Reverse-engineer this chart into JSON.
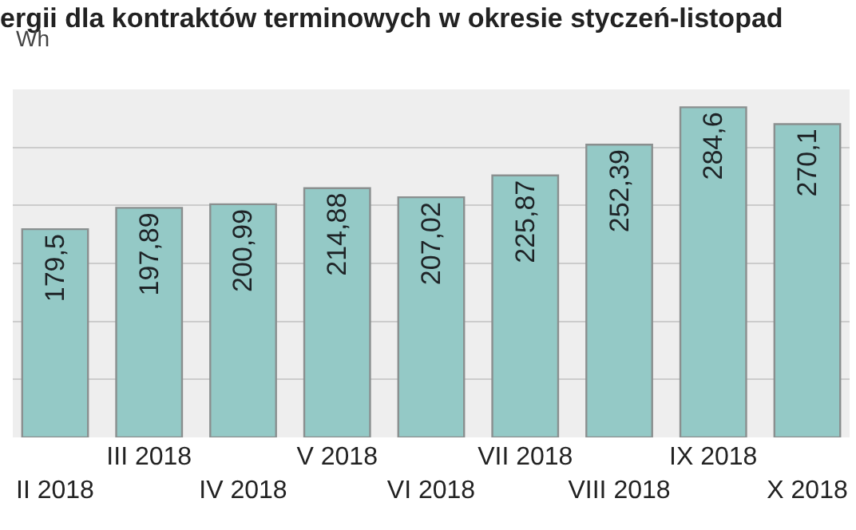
{
  "chart_data": {
    "type": "bar",
    "title": "ergii dla kontraktów terminowych w okresie styczeń-listopad",
    "subtitle": "Wh",
    "categories": [
      "II 2018",
      "III 2018",
      "IV 2018",
      "V 2018",
      "VI 2018",
      "VII 2018",
      "VIII 2018",
      "IX 2018",
      "X 2018"
    ],
    "values": [
      179.5,
      197.89,
      200.99,
      214.88,
      207.02,
      225.87,
      252.39,
      284.6,
      270.1
    ],
    "value_labels": [
      "179,5",
      "197,89",
      "200,99",
      "214,88",
      "207,02",
      "225,87",
      "252,39",
      "284,6",
      "270,1"
    ],
    "color": "#94c9c6",
    "ylim": [
      0,
      300
    ],
    "yticks": [
      {
        "value": 50,
        "label": null
      },
      {
        "value": 100,
        "label": null
      },
      {
        "value": 150,
        "label": null
      },
      {
        "value": 200,
        "label": null
      },
      {
        "value": 250,
        "label": null
      }
    ],
    "grid": "y",
    "tick_labels": "x"
  }
}
